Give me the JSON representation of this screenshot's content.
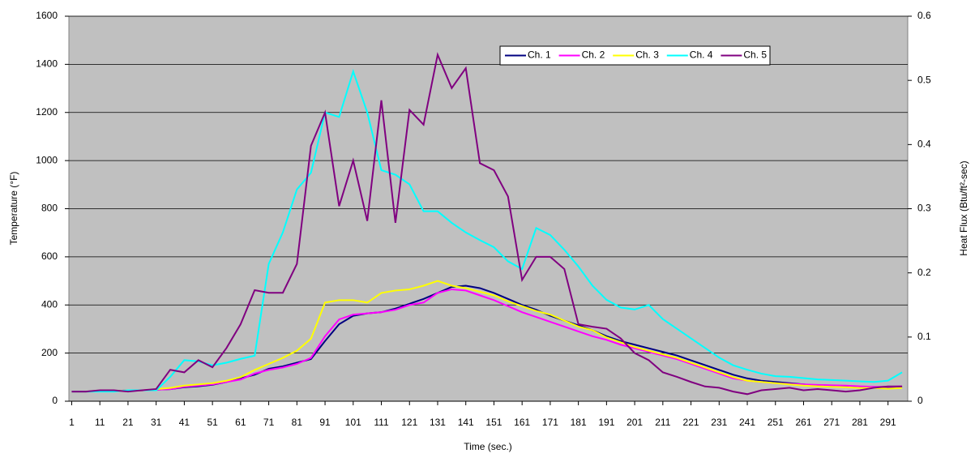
{
  "chart_data": {
    "type": "line",
    "ylabel": "Temperature (°F)",
    "y2label": "Heat Flux (Btu/ft²-sec)",
    "xlabel": "Time (sec.)",
    "x": [
      1,
      6,
      11,
      16,
      21,
      26,
      31,
      36,
      41,
      46,
      51,
      56,
      61,
      66,
      71,
      76,
      81,
      86,
      91,
      96,
      101,
      106,
      111,
      116,
      121,
      126,
      131,
      136,
      141,
      146,
      151,
      156,
      161,
      166,
      171,
      176,
      181,
      186,
      191,
      196,
      201,
      206,
      211,
      216,
      221,
      226,
      231,
      236,
      241,
      246,
      251,
      256,
      261,
      266,
      271,
      276,
      281,
      286,
      291,
      296
    ],
    "xlim": [
      0,
      298
    ],
    "xticks": [
      1,
      11,
      21,
      31,
      41,
      51,
      61,
      71,
      81,
      91,
      101,
      111,
      121,
      131,
      141,
      151,
      161,
      171,
      181,
      191,
      201,
      211,
      221,
      231,
      241,
      251,
      261,
      271,
      281,
      291
    ],
    "ylim": [
      0,
      1600
    ],
    "yticks": [
      0,
      200,
      400,
      600,
      800,
      1000,
      1200,
      1400,
      1600
    ],
    "y2lim": [
      0,
      0.6
    ],
    "y2ticks": [
      0,
      0.1,
      0.2,
      0.3,
      0.4,
      0.5,
      0.6
    ],
    "grid": true,
    "legend": "top-right",
    "series": [
      {
        "name": "Ch. 1",
        "color": "#000080",
        "values": [
          40,
          40,
          42,
          42,
          45,
          45,
          48,
          50,
          58,
          62,
          68,
          80,
          95,
          110,
          135,
          145,
          160,
          175,
          250,
          320,
          355,
          365,
          370,
          385,
          405,
          425,
          450,
          475,
          480,
          470,
          450,
          425,
          400,
          380,
          355,
          335,
          315,
          295,
          270,
          250,
          235,
          220,
          205,
          190,
          170,
          150,
          130,
          110,
          95,
          85,
          80,
          75,
          70,
          65,
          62,
          60,
          58,
          57,
          57,
          60
        ]
      },
      {
        "name": "Ch. 2",
        "color": "#ff00ff",
        "values": [
          40,
          40,
          42,
          42,
          45,
          45,
          48,
          50,
          60,
          65,
          70,
          80,
          90,
          115,
          130,
          140,
          155,
          180,
          270,
          340,
          360,
          365,
          370,
          380,
          400,
          410,
          450,
          465,
          460,
          440,
          420,
          395,
          370,
          350,
          330,
          310,
          290,
          270,
          255,
          235,
          220,
          205,
          190,
          175,
          155,
          135,
          115,
          95,
          85,
          80,
          75,
          72,
          70,
          68,
          66,
          65,
          62,
          60,
          60,
          62
        ]
      },
      {
        "name": "Ch. 3",
        "color": "#ffff00",
        "values": [
          40,
          40,
          42,
          42,
          45,
          45,
          50,
          55,
          65,
          70,
          75,
          85,
          100,
          130,
          155,
          180,
          210,
          260,
          410,
          420,
          420,
          410,
          450,
          460,
          465,
          480,
          500,
          480,
          470,
          455,
          440,
          415,
          395,
          375,
          360,
          335,
          310,
          295,
          265,
          245,
          225,
          210,
          195,
          180,
          160,
          140,
          120,
          100,
          85,
          80,
          75,
          70,
          65,
          62,
          60,
          58,
          55,
          55,
          52,
          55
        ]
      },
      {
        "name": "Ch. 4",
        "color": "#00ffff",
        "axis": "y2",
        "values": [
          0.015,
          0.015,
          0.015,
          0.015,
          0.017,
          0.017,
          0.017,
          0.038,
          0.064,
          0.062,
          0.056,
          0.06,
          0.066,
          0.071,
          0.214,
          0.263,
          0.33,
          0.356,
          0.45,
          0.443,
          0.514,
          0.45,
          0.36,
          0.353,
          0.338,
          0.296,
          0.296,
          0.278,
          0.263,
          0.251,
          0.24,
          0.218,
          0.206,
          0.27,
          0.259,
          0.236,
          0.21,
          0.18,
          0.158,
          0.146,
          0.143,
          0.15,
          0.128,
          0.113,
          0.098,
          0.083,
          0.068,
          0.056,
          0.049,
          0.043,
          0.039,
          0.038,
          0.036,
          0.034,
          0.033,
          0.032,
          0.031,
          0.03,
          0.032,
          0.045
        ]
      },
      {
        "name": "Ch. 5",
        "color": "#800080",
        "axis": "y2",
        "values": [
          0.015,
          0.015,
          0.017,
          0.017,
          0.015,
          0.017,
          0.019,
          0.049,
          0.045,
          0.064,
          0.053,
          0.083,
          0.12,
          0.173,
          0.169,
          0.169,
          0.214,
          0.398,
          0.45,
          0.304,
          0.375,
          0.281,
          0.469,
          0.278,
          0.454,
          0.431,
          0.54,
          0.488,
          0.519,
          0.371,
          0.36,
          0.319,
          0.189,
          0.225,
          0.225,
          0.206,
          0.12,
          0.116,
          0.113,
          0.098,
          0.075,
          0.064,
          0.045,
          0.038,
          0.03,
          0.023,
          0.021,
          0.015,
          0.011,
          0.017,
          0.019,
          0.021,
          0.017,
          0.019,
          0.017,
          0.015,
          0.017,
          0.021,
          0.023,
          0.023
        ]
      }
    ]
  }
}
